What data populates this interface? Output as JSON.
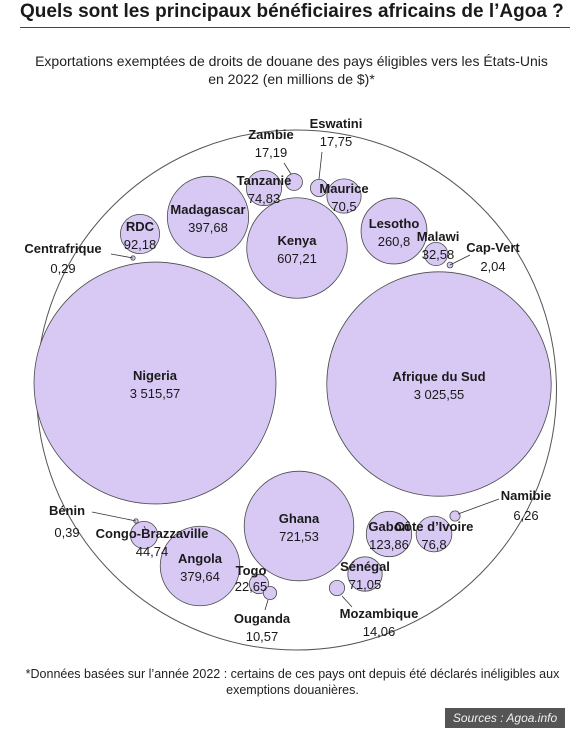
{
  "title": "Quels sont les principaux bénéficiaires africains de l’Agoa ?",
  "subtitle": "Exportations exemptées de droits de douane des pays éligibles vers les États-Unis en 2022 (en millions de $)*",
  "footnote": "*Données basées sur l’année 2022 : certains de ces pays ont depuis été déclarés inéligibles aux exemptions douanières.",
  "sources": "Sources : Agoa.info",
  "colors": {
    "bubble_fill": "#d7c8f4",
    "bubble_stroke": "#4a4a4a",
    "outer_circle": "#555555"
  },
  "chart_data": {
    "type": "bubble",
    "title": "Quels sont les principaux bénéficiaires africains de l’Agoa ?",
    "unit": "millions de $",
    "year": "2022",
    "items": [
      {
        "name": "Nigeria",
        "value": 3515.57,
        "label": "3 515,57"
      },
      {
        "name": "Afrique du Sud",
        "value": 3025.55,
        "label": "3 025,55"
      },
      {
        "name": "Ghana",
        "value": 721.53,
        "label": "721,53"
      },
      {
        "name": "Kenya",
        "value": 607.21,
        "label": "607,21"
      },
      {
        "name": "Madagascar",
        "value": 397.68,
        "label": "397,68"
      },
      {
        "name": "Angola",
        "value": 379.64,
        "label": "379,64"
      },
      {
        "name": "Lesotho",
        "value": 260.8,
        "label": "260,8"
      },
      {
        "name": "Gabon",
        "value": 123.86,
        "label": "123,86"
      },
      {
        "name": "RDC",
        "value": 92.18,
        "label": "92,18"
      },
      {
        "name": "Côte d’Ivoire",
        "value": 76.8,
        "label": "76,8"
      },
      {
        "name": "Tanzanie",
        "value": 74.83,
        "label": "74,83"
      },
      {
        "name": "Sénégal",
        "value": 71.05,
        "label": "71,05"
      },
      {
        "name": "Maurice",
        "value": 70.5,
        "label": "70,5"
      },
      {
        "name": "Congo-Brazzaville",
        "value": 44.74,
        "label": "44,74"
      },
      {
        "name": "Malawi",
        "value": 32.58,
        "label": "32,58"
      },
      {
        "name": "Togo",
        "value": 22.65,
        "label": "22,65"
      },
      {
        "name": "Eswatini",
        "value": 17.75,
        "label": "17,75"
      },
      {
        "name": "Zambie",
        "value": 17.19,
        "label": "17,19"
      },
      {
        "name": "Mozambique",
        "value": 14.06,
        "label": "14,06"
      },
      {
        "name": "Ouganda",
        "value": 10.57,
        "label": "10,57"
      },
      {
        "name": "Namibie",
        "value": 6.26,
        "label": "6,26"
      },
      {
        "name": "Cap-Vert",
        "value": 2.04,
        "label": "2,04"
      },
      {
        "name": "Bénin",
        "value": 0.39,
        "label": "0,39"
      },
      {
        "name": "Centrafrique",
        "value": 0.29,
        "label": "0,29"
      }
    ]
  }
}
